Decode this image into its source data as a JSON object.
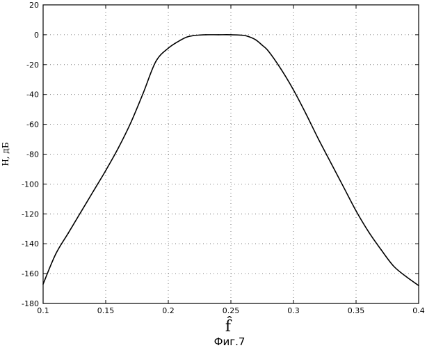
{
  "chart_data": {
    "type": "line",
    "title": "",
    "xlabel": "f̂",
    "ylabel": "H, дБ",
    "caption": "Фиг.7",
    "xlim": [
      0.1,
      0.4
    ],
    "ylim": [
      -180,
      20
    ],
    "xticks": [
      0.1,
      0.15,
      0.2,
      0.25,
      0.3,
      0.35,
      0.4
    ],
    "xtick_labels": [
      "0.1",
      "0.15",
      "0.2",
      "0.25",
      "0.3",
      "0.35",
      "0.4"
    ],
    "yticks": [
      20,
      0,
      -20,
      -40,
      -60,
      -80,
      -100,
      -120,
      -140,
      -160,
      -180
    ],
    "ytick_labels": [
      "20",
      "0",
      "-20",
      "-40",
      "-60",
      "-80",
      "-100",
      "-120",
      "-140",
      "-160",
      "-180"
    ],
    "grid": true,
    "grid_style": "dotted",
    "line_color": "#000000",
    "series": [
      {
        "name": "",
        "x": [
          0.1,
          0.11,
          0.12,
          0.13,
          0.14,
          0.15,
          0.16,
          0.17,
          0.18,
          0.19,
          0.2,
          0.21,
          0.215,
          0.22,
          0.225,
          0.23,
          0.24,
          0.25,
          0.26,
          0.265,
          0.27,
          0.275,
          0.28,
          0.29,
          0.3,
          0.31,
          0.32,
          0.33,
          0.34,
          0.35,
          0.36,
          0.37,
          0.38,
          0.39,
          0.4
        ],
        "y": [
          -167,
          -147,
          -133,
          -119,
          -105,
          -91,
          -76,
          -59,
          -39,
          -18,
          -9,
          -3.5,
          -1.5,
          -0.6,
          -0.2,
          0,
          0,
          0,
          -0.4,
          -1.5,
          -3.5,
          -7,
          -11,
          -23,
          -37,
          -53,
          -70,
          -86,
          -102,
          -118,
          -132,
          -144,
          -155,
          -162,
          -168
        ]
      }
    ]
  }
}
